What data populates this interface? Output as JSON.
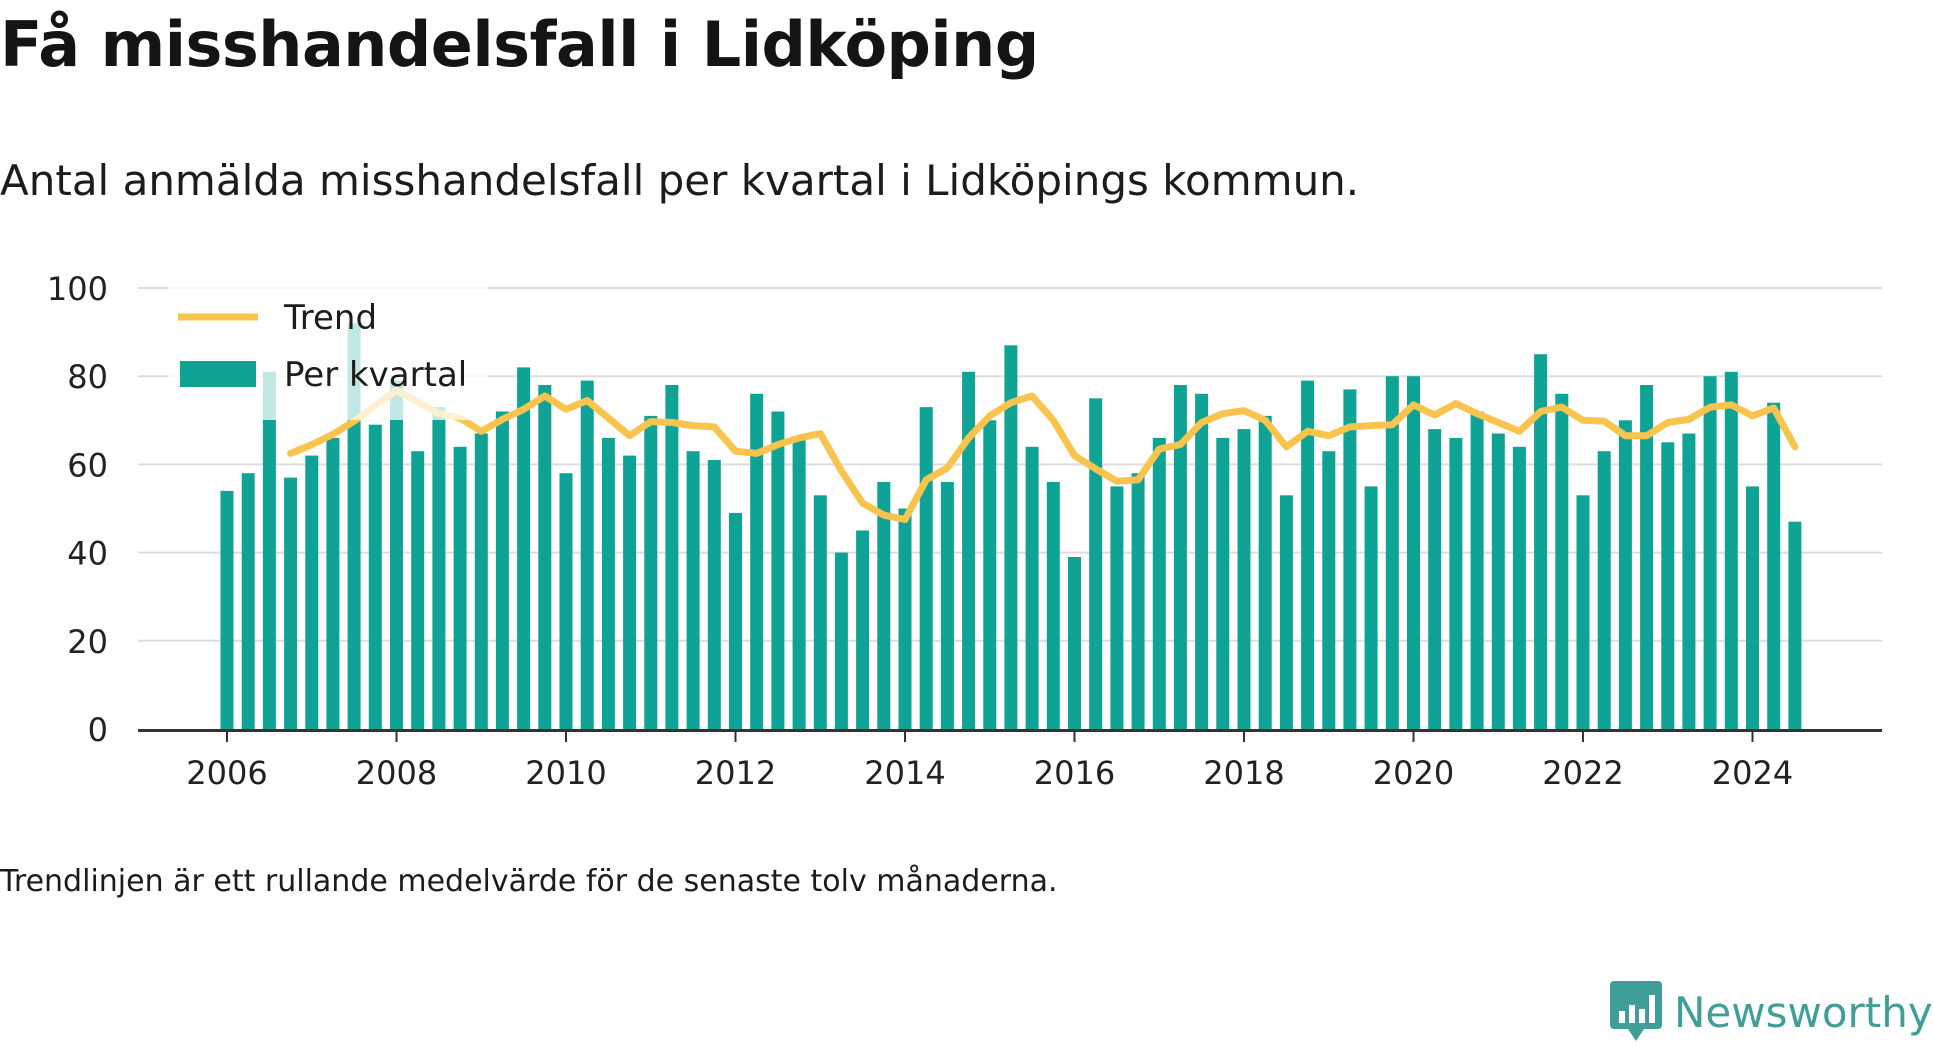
{
  "title": "Få misshandelsfall i Lidköping",
  "subtitle": "Antal anmälda misshandelsfall per kvartal i Lidköpings kommun.",
  "note": "Trendlinjen är ett rullande medelvärde för de senaste tolv månaderna.",
  "brand": {
    "name": "Newsworthy",
    "icon": "newsworthy-logo-icon",
    "color": "#3f9e97"
  },
  "colors": {
    "bars": "#0fa396",
    "trend": "#f8c44e",
    "grid": "#dddddd",
    "axis": "#333333"
  },
  "chart_data": {
    "type": "bar",
    "x_unit": "quarter",
    "yticks": [
      0,
      20,
      40,
      60,
      80,
      100
    ],
    "xticks": [
      "2006",
      "2008",
      "2010",
      "2012",
      "2014",
      "2016",
      "2018",
      "2020",
      "2022",
      "2024"
    ],
    "ylim": [
      0,
      100
    ],
    "grid": true,
    "legend_position": "top-left",
    "series": [
      {
        "name": "Per kvartal",
        "type": "bar",
        "start": "2006 Q1",
        "values": [
          54,
          58,
          81,
          57,
          62,
          66,
          92,
          69,
          79,
          63,
          73,
          64,
          67,
          72,
          82,
          78,
          58,
          79,
          66,
          62,
          71,
          78,
          63,
          61,
          49,
          76,
          72,
          66,
          53,
          40,
          45,
          56,
          50,
          73,
          56,
          81,
          70,
          87,
          64,
          56,
          39,
          75,
          55,
          58,
          66,
          78,
          76,
          66,
          68,
          71,
          53,
          79,
          63,
          77,
          55,
          80,
          80,
          68,
          66,
          72,
          67,
          64,
          85,
          76,
          53,
          63,
          70,
          78,
          65,
          67,
          80,
          81,
          55,
          74,
          47
        ]
      },
      {
        "name": "Trend",
        "type": "line",
        "start": "2006 Q4",
        "values": [
          62.5,
          64.5,
          66.8,
          69.8,
          73.3,
          76.8,
          74.2,
          71.5,
          70.5,
          67.5,
          70.2,
          72.5,
          75.5,
          72.5,
          74.5,
          70.5,
          66.5,
          69.7,
          69.5,
          68.8,
          68.5,
          63,
          62.5,
          64.5,
          66,
          67,
          58.5,
          51.2,
          48.5,
          47.5,
          56.5,
          59.2,
          66,
          71,
          74,
          75.5,
          70,
          62,
          59,
          56.2,
          56.5,
          63.5,
          64.5,
          69.5,
          71.5,
          72.2,
          70,
          64,
          67.5,
          66.5,
          68.5,
          68.8,
          69,
          73.5,
          71.2,
          73.8,
          71.5,
          69.5,
          67.5,
          72,
          73,
          70,
          69.8,
          66.5,
          66.5,
          69.5,
          70.2,
          73,
          73.5,
          71,
          72.8,
          64
        ]
      }
    ]
  }
}
